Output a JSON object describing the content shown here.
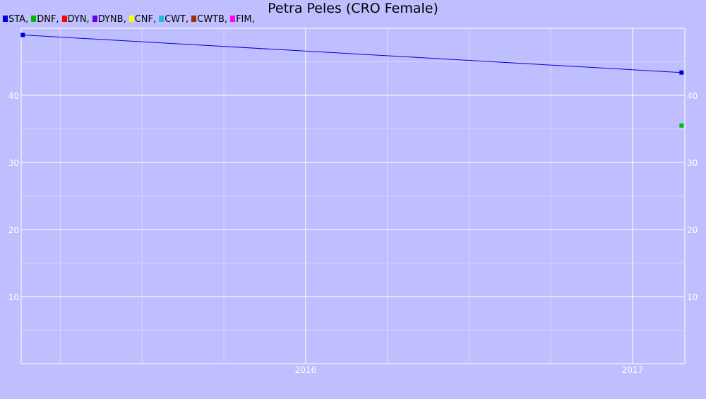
{
  "chart_data": {
    "type": "line",
    "title": "Petra Peles (CRO Female)",
    "xlabel": "",
    "ylabel": "",
    "x_range": [
      2015.13,
      2017.16
    ],
    "ylim": [
      0,
      50
    ],
    "y_ticks": [
      10,
      20,
      30,
      40
    ],
    "x_ticks": [
      {
        "value": 2016.0,
        "label": "2016"
      },
      {
        "value": 2017.0,
        "label": "2017"
      }
    ],
    "grid": true,
    "legend_placement": "top-left",
    "series": [
      {
        "name": "STA",
        "color": "#0000dd",
        "points": [
          {
            "x": 2015.135,
            "y": 49.0
          },
          {
            "x": 2017.15,
            "y": 43.4
          }
        ]
      },
      {
        "name": "DNF",
        "color": "#00bb00",
        "points": [
          {
            "x": 2017.15,
            "y": 35.5
          }
        ]
      },
      {
        "name": "DYN",
        "color": "#ff0000",
        "points": []
      },
      {
        "name": "DYNB",
        "color": "#6600ee",
        "points": []
      },
      {
        "name": "CNF",
        "color": "#ffff00",
        "points": []
      },
      {
        "name": "CWT",
        "color": "#22bbdd",
        "points": []
      },
      {
        "name": "CWTB",
        "color": "#993300",
        "points": []
      },
      {
        "name": "FIM",
        "color": "#ff00ff",
        "points": []
      }
    ]
  }
}
